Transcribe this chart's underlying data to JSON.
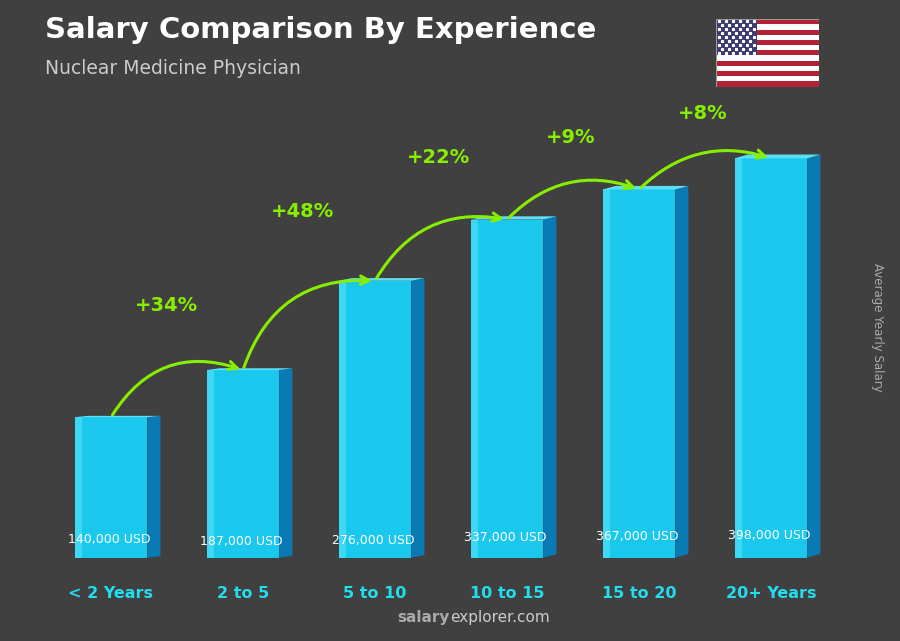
{
  "title": "Salary Comparison By Experience",
  "subtitle": "Nuclear Medicine Physician",
  "categories": [
    "< 2 Years",
    "2 to 5",
    "5 to 10",
    "10 to 15",
    "15 to 20",
    "20+ Years"
  ],
  "values": [
    140000,
    187000,
    276000,
    337000,
    367000,
    398000
  ],
  "labels": [
    "140,000 USD",
    "187,000 USD",
    "276,000 USD",
    "337,000 USD",
    "367,000 USD",
    "398,000 USD"
  ],
  "pct_changes": [
    "+34%",
    "+48%",
    "+22%",
    "+9%",
    "+8%"
  ],
  "bar_color_face": "#1ac8ed",
  "bar_color_side": "#0a7ab5",
  "bar_color_top": "#5de0f7",
  "bg_color": "#404040",
  "title_color": "#ffffff",
  "subtitle_color": "#cccccc",
  "label_color": "#ffffff",
  "pct_color": "#88ee00",
  "xlabel_color": "#22ddee",
  "ylabel_text": "Average Yearly Salary",
  "watermark_salary": "salary",
  "watermark_explorer": "explorer.com",
  "ylim": [
    0,
    460000
  ]
}
